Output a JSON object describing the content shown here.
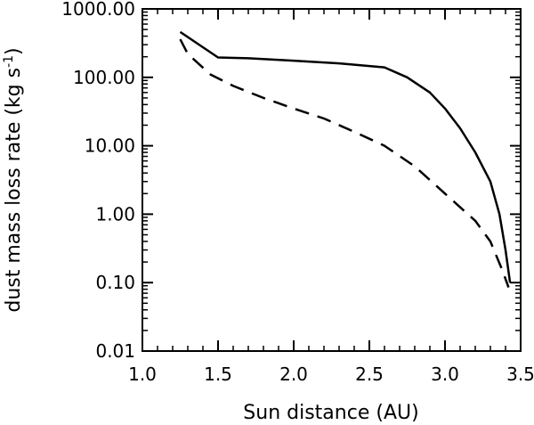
{
  "chart_data": {
    "type": "line",
    "xlabel": "Sun distance (AU)",
    "ylabel": "dust mass loss rate (kg s",
    "ylabel_sup": "-1",
    "ylabel_close": ")",
    "xlim": [
      1.0,
      3.5
    ],
    "ylim": [
      0.01,
      1000
    ],
    "yscale": "log",
    "grid": false,
    "x_ticks": [
      {
        "value": 1.0,
        "label": "1.0"
      },
      {
        "value": 1.5,
        "label": "1.5"
      },
      {
        "value": 2.0,
        "label": "2.0"
      },
      {
        "value": 2.5,
        "label": "2.5"
      },
      {
        "value": 3.0,
        "label": "3.0"
      },
      {
        "value": 3.5,
        "label": "3.5"
      }
    ],
    "y_ticks": [
      {
        "value": 0.01,
        "label": "0.01"
      },
      {
        "value": 0.1,
        "label": "0.10"
      },
      {
        "value": 1,
        "label": "1.00"
      },
      {
        "value": 10,
        "label": "10.00"
      },
      {
        "value": 100,
        "label": "100.00"
      },
      {
        "value": 1000,
        "label": "1000.00"
      }
    ],
    "series": [
      {
        "style": "solid",
        "color": "#000000",
        "points": [
          [
            1.25,
            460
          ],
          [
            1.5,
            195
          ],
          [
            1.7,
            190
          ],
          [
            2.0,
            175
          ],
          [
            2.3,
            160
          ],
          [
            2.6,
            140
          ],
          [
            2.75,
            100
          ],
          [
            2.9,
            60
          ],
          [
            3.0,
            35
          ],
          [
            3.1,
            18
          ],
          [
            3.2,
            8
          ],
          [
            3.3,
            3
          ],
          [
            3.36,
            1.0
          ],
          [
            3.4,
            0.3
          ],
          [
            3.43,
            0.1
          ]
        ]
      },
      {
        "style": "dashed",
        "color": "#000000",
        "points": [
          [
            1.25,
            360
          ],
          [
            1.3,
            220
          ],
          [
            1.45,
            110
          ],
          [
            1.6,
            75
          ],
          [
            1.8,
            50
          ],
          [
            2.0,
            35
          ],
          [
            2.2,
            25
          ],
          [
            2.4,
            16
          ],
          [
            2.6,
            10
          ],
          [
            2.8,
            5
          ],
          [
            3.0,
            2.0
          ],
          [
            3.2,
            0.8
          ],
          [
            3.3,
            0.4
          ],
          [
            3.38,
            0.15
          ],
          [
            3.42,
            0.085
          ]
        ]
      }
    ]
  }
}
